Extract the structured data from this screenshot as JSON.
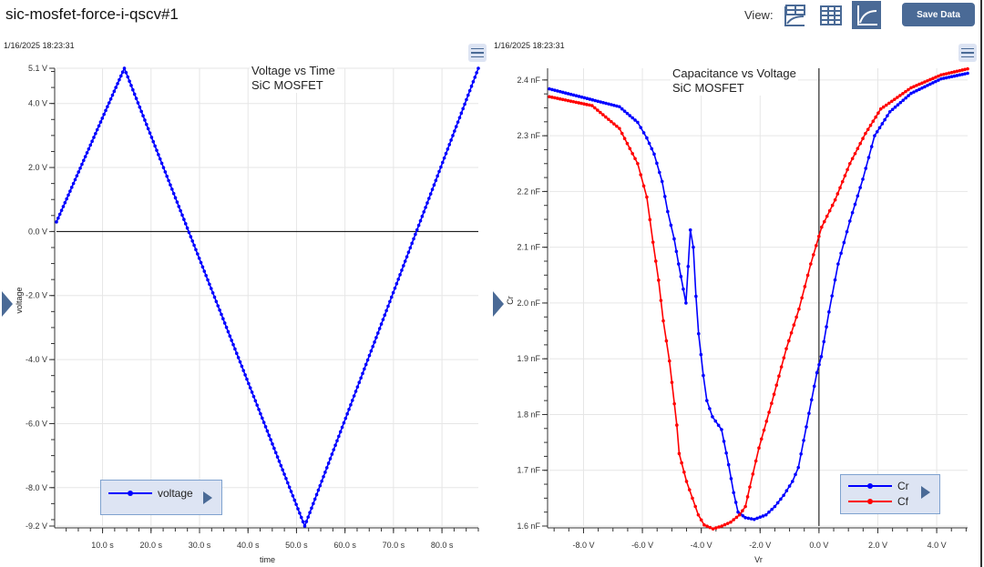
{
  "header": {
    "title": "sic-mosfet-force-i-qscv#1",
    "view_label": "View:",
    "view_buttons": [
      {
        "icon": "table-chart-icon",
        "active": false
      },
      {
        "icon": "table-icon",
        "active": false
      },
      {
        "icon": "chart-icon",
        "active": true
      }
    ],
    "save_label": "Save Data"
  },
  "colors": {
    "accent": "#4a6a96",
    "legend_bg": "#dde4f3",
    "series_blue": "#0000ff",
    "series_red": "#ff0000"
  },
  "charts": [
    {
      "timestamp": "1/16/2025 18:23:31",
      "title_lines": [
        "Voltage vs Time",
        "SiC MOSFET"
      ],
      "xlabel": "time",
      "ylabel": "voltage",
      "legend": [
        "voltage"
      ]
    },
    {
      "timestamp": "1/16/2025 18:23:31",
      "title_lines": [
        "Capacitance vs Voltage",
        "SiC MOSFET"
      ],
      "xlabel": "Vr",
      "ylabel": "Cr",
      "legend": [
        "Cr",
        "Cf"
      ]
    }
  ],
  "chart_data": [
    {
      "type": "line",
      "title": "Voltage vs Time\nSiC MOSFET",
      "xlabel": "time",
      "ylabel": "voltage",
      "xlim": [
        0.5,
        87.5
      ],
      "ylim": [
        -9.2,
        5.1
      ],
      "xticks": [
        10,
        20,
        30,
        40,
        50,
        60,
        70,
        80
      ],
      "xtick_labels": [
        "10.0 s",
        "20.0 s",
        "30.0 s",
        "40.0 s",
        "50.0 s",
        "60.0 s",
        "70.0 s",
        "80.0 s"
      ],
      "yticks": [
        5.1,
        4,
        2,
        0,
        -2,
        -4,
        -6,
        -8,
        -9.2
      ],
      "ytick_labels": [
        "5.1 V",
        "4.0 V",
        "2.0 V",
        "0.0 V",
        "-2.0 V",
        "-4.0 V",
        "-6.0 V",
        "-8.0 V",
        "-9.2 V"
      ],
      "grid": true,
      "legend_position": "bottom-left",
      "series": [
        {
          "name": "voltage",
          "color": "#0000ff",
          "x": [
            0.5,
            14.5,
            51.7,
            87.5
          ],
          "y": [
            0.3,
            5.1,
            -9.2,
            5.1
          ]
        }
      ]
    },
    {
      "type": "line",
      "title": "Capacitance vs Voltage\nSiC MOSFET",
      "xlabel": "Vr",
      "ylabel": "Cr",
      "xlim": [
        -9.16,
        5.05
      ],
      "ylim": [
        1.6,
        2.421
      ],
      "xticks": [
        -8,
        -6,
        -4,
        -2,
        0,
        2,
        4
      ],
      "xtick_labels": [
        "-8.0 V",
        "-6.0 V",
        "-4.0 V",
        "-2.0 V",
        "0.0 V",
        "2.0 V",
        "4.0 V"
      ],
      "yticks": [
        1.6,
        1.7,
        1.8,
        1.9,
        2.0,
        2.1,
        2.2,
        2.3,
        2.4
      ],
      "ytick_labels": [
        "1.6 nF",
        "1.7 nF",
        "1.8 nF",
        "1.9 nF",
        "2.0 nF",
        "2.1 nF",
        "2.2 nF",
        "2.3 nF",
        "2.4 nF"
      ],
      "grid": true,
      "legend_position": "bottom-right",
      "series": [
        {
          "name": "Cr",
          "color": "#0000ff",
          "x": [
            -9.16,
            -6.78,
            -6.16,
            -5.85,
            -5.6,
            -5.33,
            -5.14,
            -4.92,
            -4.77,
            -4.61,
            -4.52,
            -4.37,
            -4.27,
            -4.18,
            -4.09,
            -3.93,
            -3.81,
            -3.62,
            -3.31,
            -3.07,
            -2.9,
            -2.75,
            -2.5,
            -2.2,
            -1.8,
            -1.5,
            -1.2,
            -0.9,
            -0.7,
            -0.07,
            0.08,
            0.34,
            0.65,
            1.05,
            1.49,
            1.89,
            2.41,
            3.13,
            4.15,
            5.05
          ],
          "y": [
            2.384,
            2.352,
            2.324,
            2.296,
            2.267,
            2.218,
            2.164,
            2.115,
            2.07,
            2.025,
            2.0,
            2.131,
            2.1,
            2.012,
            1.945,
            1.87,
            1.825,
            1.796,
            1.773,
            1.71,
            1.66,
            1.625,
            1.615,
            1.612,
            1.62,
            1.635,
            1.655,
            1.68,
            1.705,
            1.875,
            1.904,
            1.984,
            2.07,
            2.147,
            2.222,
            2.3,
            2.343,
            2.376,
            2.402,
            2.412
          ]
        },
        {
          "name": "Cf",
          "color": "#ff0000",
          "x": [
            -9.16,
            -7.71,
            -6.78,
            -6.16,
            -5.85,
            -5.64,
            -5.45,
            -5.29,
            -5.08,
            -4.83,
            -4.75,
            -4.5,
            -4.3,
            -4.1,
            -3.9,
            -3.6,
            -3.3,
            -3.0,
            -2.7,
            -2.5,
            -2.35,
            -2.04,
            -1.61,
            -1.11,
            -0.68,
            -0.28,
            0.09,
            0.55,
            1.05,
            1.58,
            2.1,
            3.13,
            4.15,
            5.05
          ],
          "y": [
            2.37,
            2.354,
            2.313,
            2.25,
            2.19,
            2.109,
            2.041,
            1.968,
            1.896,
            1.781,
            1.73,
            1.68,
            1.65,
            1.62,
            1.602,
            1.595,
            1.6,
            1.607,
            1.62,
            1.635,
            1.67,
            1.74,
            1.82,
            1.918,
            1.989,
            2.07,
            2.136,
            2.185,
            2.25,
            2.304,
            2.348,
            2.386,
            2.409,
            2.42
          ]
        }
      ]
    }
  ]
}
